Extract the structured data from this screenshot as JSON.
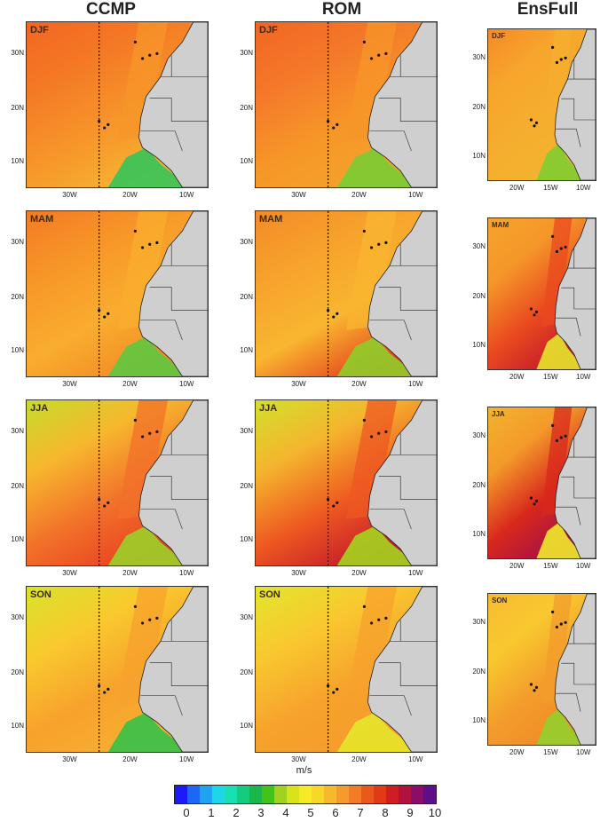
{
  "columns": [
    "CCMP",
    "ROM",
    "EnsFull"
  ],
  "seasons": [
    "DJF",
    "MAM",
    "JJA",
    "SON"
  ],
  "lat_ticks": [
    "30N",
    "20N",
    "10N"
  ],
  "lon_ticks_wide": [
    "30W",
    "20W",
    "10W"
  ],
  "lon_ticks_narrow": [
    "20W",
    "15W",
    "10W"
  ],
  "units": "m/s",
  "colorbar": {
    "colors": [
      "#1b1bf7",
      "#1e66f5",
      "#1fa2f2",
      "#1fd5e8",
      "#19dfb1",
      "#14cc7d",
      "#19b64a",
      "#44c21c",
      "#a2d11f",
      "#d8e31e",
      "#f5ea23",
      "#f9d62a",
      "#f7b72e",
      "#f59a2c",
      "#f27b25",
      "#ec581c",
      "#e13a18",
      "#cf1e20",
      "#b1113e",
      "#8b0d6a",
      "#5e0e88"
    ],
    "labels": [
      "0",
      "1",
      "2",
      "3",
      "4",
      "5",
      "6",
      "7",
      "8",
      "9",
      "10"
    ]
  }
}
